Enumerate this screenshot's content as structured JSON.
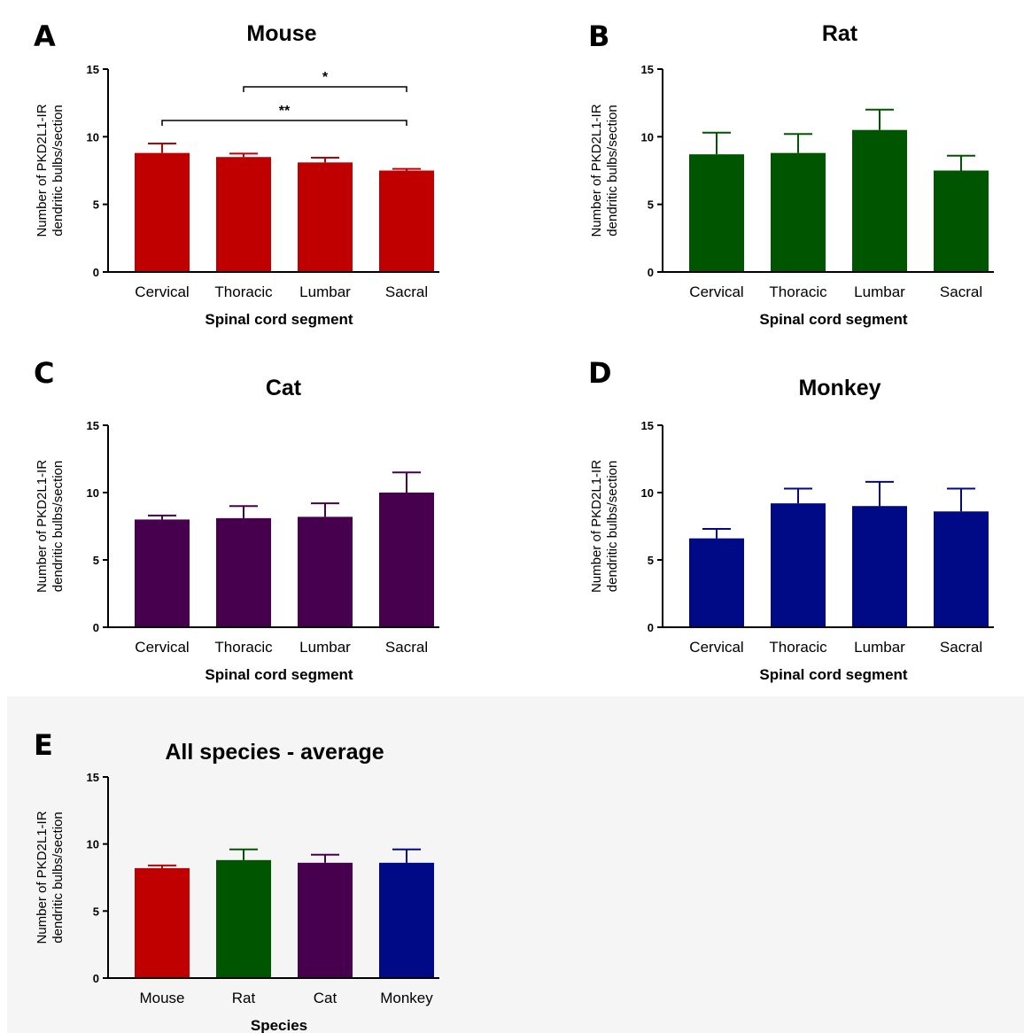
{
  "chart_data": [
    {
      "panel_label": "A",
      "type": "bar",
      "title": "Mouse",
      "categories": [
        "Cervical",
        "Thoracic",
        "Lumbar",
        "Sacral"
      ],
      "values": [
        8.8,
        8.5,
        8.1,
        7.5
      ],
      "errors": [
        0.7,
        0.25,
        0.35,
        0.12
      ],
      "color": "#c00000",
      "xlabel": "Spinal cord segment",
      "ylabel": "Number of PKD2L1-IR dendritic bulbs/section",
      "ylim": [
        0,
        15
      ],
      "yticks": [
        "0",
        "5",
        "10",
        "15"
      ],
      "significance": [
        {
          "from": 1,
          "to": 3,
          "label": "*"
        },
        {
          "from": 0,
          "to": 3,
          "label": "**"
        }
      ]
    },
    {
      "panel_label": "B",
      "type": "bar",
      "title": "Rat",
      "categories": [
        "Cervical",
        "Thoracic",
        "Lumbar",
        "Sacral"
      ],
      "values": [
        8.7,
        8.8,
        10.5,
        7.5
      ],
      "errors": [
        1.6,
        1.4,
        1.5,
        1.1
      ],
      "color": "#005500",
      "xlabel": "Spinal cord segment",
      "ylabel": "Number of PKD2L1-IR dendritic bulbs/section",
      "ylim": [
        0,
        15
      ],
      "yticks": [
        "0",
        "5",
        "10",
        "15"
      ]
    },
    {
      "panel_label": "C",
      "type": "bar",
      "title": "Cat",
      "categories": [
        "Cervical",
        "Thoracic",
        "Lumbar",
        "Sacral"
      ],
      "values": [
        8.0,
        8.1,
        8.2,
        10.0
      ],
      "errors": [
        0.3,
        0.9,
        1.0,
        1.5
      ],
      "color": "#46004e",
      "xlabel": "Spinal cord segment",
      "ylabel": "Number of PKD2L1-IR dendritic bulbs/section",
      "ylim": [
        0,
        15
      ],
      "yticks": [
        "0",
        "5",
        "10",
        "15"
      ]
    },
    {
      "panel_label": "D",
      "type": "bar",
      "title": "Monkey",
      "categories": [
        "Cervical",
        "Thoracic",
        "Lumbar",
        "Sacral"
      ],
      "values": [
        6.6,
        9.2,
        9.0,
        8.6
      ],
      "errors": [
        0.7,
        1.1,
        1.8,
        1.7
      ],
      "color": "#000a87",
      "xlabel": "Spinal cord segment",
      "ylabel": "Number of PKD2L1-IR dendritic bulbs/section",
      "ylim": [
        0,
        15
      ],
      "yticks": [
        "0",
        "5",
        "10",
        "15"
      ]
    },
    {
      "panel_label": "E",
      "type": "bar",
      "title": "All species - average",
      "categories": [
        "Mouse",
        "Rat",
        "Cat",
        "Monkey"
      ],
      "values": [
        8.2,
        8.8,
        8.6,
        8.6
      ],
      "errors": [
        0.2,
        0.8,
        0.6,
        1.0
      ],
      "colors": [
        "#c00000",
        "#005500",
        "#46004e",
        "#000a87"
      ],
      "xlabel": "Species",
      "ylabel": "Number of PKD2L1-IR dendritic bulbs/section",
      "ylim": [
        0,
        15
      ],
      "yticks": [
        "0",
        "5",
        "10",
        "15"
      ]
    }
  ]
}
